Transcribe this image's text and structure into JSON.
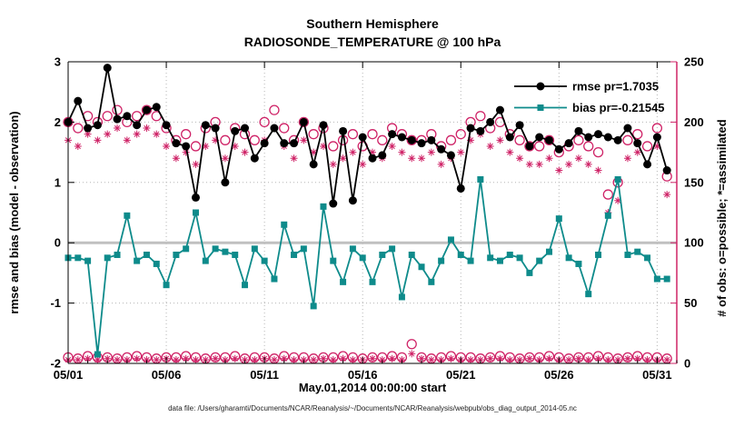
{
  "chart_data": {
    "type": "line",
    "title": "Southern Hemisphere",
    "subtitle": "RADIOSONDE_TEMPERATURE @ 100 hPa",
    "xlabel": "May.01,2014 00:00:00 start",
    "ylabel_left": "rmse and bias (model - observation)",
    "ylabel_right": "# of obs: o=possible; *=assimilated",
    "caption": "data file: /Users/gharamti/Documents/NCAR/Reanalysis/~/Documents/NCAR/Reanalysis/webpub/obs_diag_output_2014-05.nc",
    "x_tick_labels": [
      "05/01",
      "05/06",
      "05/11",
      "05/16",
      "05/21",
      "05/26",
      "05/31"
    ],
    "x_ticks": [
      0,
      5,
      10,
      15,
      20,
      25,
      30
    ],
    "x_range": [
      0,
      31
    ],
    "y_left_ticks": [
      -2,
      -1,
      0,
      1,
      2,
      3
    ],
    "y_left_range": [
      -2,
      3
    ],
    "y_right_ticks": [
      0,
      50,
      100,
      150,
      200,
      250
    ],
    "y_right_range": [
      0,
      250
    ],
    "grid": true,
    "legend_position": "top-right-inside",
    "colors": {
      "rmse": "#000000",
      "bias": "#0e8b8b",
      "obs": "#cf2367",
      "zero_line": "#c0c0c0",
      "grid": "#b5b5b5"
    },
    "x": [
      0,
      0.5,
      1,
      1.5,
      2,
      2.5,
      3,
      3.5,
      4,
      4.5,
      5,
      5.5,
      6,
      6.5,
      7,
      7.5,
      8,
      8.5,
      9,
      9.5,
      10,
      10.5,
      11,
      11.5,
      12,
      12.5,
      13,
      13.5,
      14,
      14.5,
      15,
      15.5,
      16,
      16.5,
      17,
      17.5,
      18,
      18.5,
      19,
      19.5,
      20,
      20.5,
      21,
      21.5,
      22,
      22.5,
      23,
      23.5,
      24,
      24.5,
      25,
      25.5,
      26,
      26.5,
      27,
      27.5,
      28,
      28.5,
      29,
      29.5,
      30,
      30.5
    ],
    "series": [
      {
        "name": "rmse",
        "legend": "rmse pr=1.7035",
        "axis": "left",
        "marker": "filled-circle",
        "line": true,
        "color": "#000000",
        "values": [
          2.0,
          2.35,
          1.9,
          1.95,
          2.9,
          2.05,
          2.1,
          1.95,
          2.2,
          2.25,
          1.95,
          1.65,
          1.6,
          0.75,
          1.95,
          1.9,
          1.0,
          1.85,
          1.9,
          1.4,
          1.65,
          1.9,
          1.65,
          1.65,
          2.0,
          1.3,
          1.95,
          0.65,
          1.85,
          0.7,
          1.75,
          1.4,
          1.45,
          1.8,
          1.75,
          1.7,
          1.65,
          1.7,
          1.55,
          1.45,
          0.9,
          1.9,
          1.85,
          2.0,
          2.2,
          1.75,
          1.95,
          1.6,
          1.75,
          1.7,
          1.55,
          1.65,
          1.85,
          1.75,
          1.8,
          1.75,
          1.7,
          1.9,
          1.65,
          1.3,
          1.75,
          1.2
        ]
      },
      {
        "name": "bias",
        "legend": "bias pr=-0.21545",
        "axis": "left",
        "marker": "filled-square",
        "line": true,
        "color": "#0e8b8b",
        "values": [
          -0.25,
          -0.25,
          -0.3,
          -1.85,
          -0.25,
          -0.2,
          0.45,
          -0.3,
          -0.2,
          -0.35,
          -0.7,
          -0.2,
          -0.1,
          0.5,
          -0.3,
          -0.1,
          -0.15,
          -0.2,
          -0.7,
          -0.1,
          -0.3,
          -0.6,
          0.3,
          -0.2,
          -0.1,
          -1.05,
          0.6,
          -0.3,
          -0.65,
          -0.1,
          -0.25,
          -0.65,
          -0.2,
          -0.1,
          -0.9,
          -0.2,
          -0.4,
          -0.65,
          -0.3,
          0.05,
          -0.2,
          -0.3,
          1.05,
          -0.25,
          -0.3,
          -0.2,
          -0.25,
          -0.5,
          -0.3,
          -0.15,
          0.4,
          -0.25,
          -0.35,
          -0.85,
          -0.2,
          0.45,
          1.05,
          -0.2,
          -0.15,
          -0.25,
          -0.6,
          -0.6
        ]
      },
      {
        "name": "possible_obs",
        "axis": "right",
        "marker": "open-circle",
        "line": false,
        "color": "#cf2367",
        "values": [
          200,
          195,
          205,
          200,
          205,
          210,
          200,
          205,
          210,
          205,
          195,
          185,
          190,
          180,
          195,
          200,
          185,
          195,
          190,
          185,
          200,
          210,
          195,
          185,
          200,
          190,
          195,
          180,
          185,
          190,
          180,
          190,
          185,
          195,
          190,
          185,
          185,
          190,
          180,
          185,
          190,
          200,
          205,
          195,
          200,
          190,
          185,
          180,
          180,
          185,
          175,
          180,
          185,
          180,
          175,
          140,
          150,
          185,
          190,
          180,
          195,
          155
        ]
      },
      {
        "name": "assimilated_obs",
        "axis": "right",
        "marker": "asterisk",
        "line": false,
        "color": "#cf2367",
        "values": [
          185,
          180,
          190,
          185,
          190,
          195,
          185,
          190,
          195,
          190,
          180,
          170,
          175,
          165,
          180,
          185,
          170,
          180,
          175,
          170,
          185,
          195,
          180,
          170,
          185,
          175,
          180,
          165,
          170,
          175,
          165,
          175,
          170,
          180,
          175,
          170,
          170,
          175,
          165,
          170,
          175,
          185,
          190,
          180,
          185,
          175,
          170,
          165,
          165,
          170,
          160,
          165,
          170,
          165,
          160,
          125,
          135,
          170,
          175,
          165,
          180,
          140
        ]
      },
      {
        "name": "possible_obs_low",
        "axis": "right",
        "marker": "open-circle",
        "line": false,
        "color": "#cf2367",
        "values": [
          5,
          4,
          6,
          5,
          5,
          4,
          5,
          6,
          5,
          4,
          5,
          5,
          6,
          5,
          4,
          5,
          5,
          6,
          4,
          5,
          5,
          4,
          6,
          5,
          5,
          4,
          5,
          5,
          6,
          5,
          4,
          5,
          5,
          6,
          5,
          16,
          5,
          4,
          5,
          6,
          5,
          5,
          4,
          5,
          6,
          5,
          4,
          5,
          5,
          6,
          5,
          4,
          5,
          5,
          6,
          5,
          4,
          5,
          6,
          5,
          5,
          4
        ]
      },
      {
        "name": "assimilated_obs_low",
        "axis": "right",
        "marker": "asterisk",
        "line": false,
        "color": "#cf2367",
        "values": [
          3,
          3,
          4,
          3,
          4,
          3,
          3,
          4,
          3,
          3,
          4,
          3,
          4,
          3,
          3,
          4,
          3,
          4,
          3,
          3,
          4,
          3,
          4,
          3,
          3,
          3,
          4,
          3,
          4,
          3,
          3,
          4,
          3,
          4,
          3,
          8,
          4,
          3,
          3,
          4,
          3,
          3,
          3,
          4,
          4,
          3,
          3,
          4,
          3,
          4,
          3,
          3,
          4,
          3,
          4,
          3,
          3,
          4,
          4,
          3,
          3,
          3
        ]
      }
    ]
  }
}
